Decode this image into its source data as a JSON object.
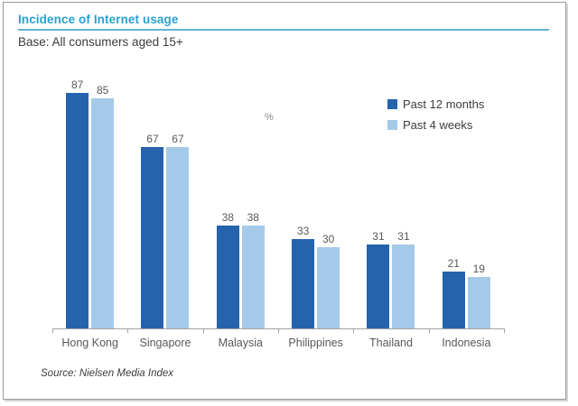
{
  "page": {
    "title": "Incidence of Internet usage",
    "subtitle": "Base: All consumers aged 15+",
    "source": "Source: Nielsen Media Index"
  },
  "chart_data": {
    "type": "bar",
    "title": "Incidence of Internet usage",
    "subtitle": "Base: All consumers aged 15+",
    "unit_label": "%",
    "categories": [
      "Hong Kong",
      "Singapore",
      "Malaysia",
      "Philippines",
      "Thailand",
      "Indonesia"
    ],
    "series": [
      {
        "name": "Past 12 months",
        "color": "#2563ac",
        "values": [
          87,
          67,
          38,
          33,
          31,
          21
        ]
      },
      {
        "name": "Past 4 weeks",
        "color": "#a5c9e8",
        "values": [
          85,
          67,
          38,
          30,
          31,
          19
        ]
      }
    ],
    "ylim": [
      0,
      100
    ],
    "value_labels": true,
    "grid": false,
    "legend_position": "top-right",
    "source": "Source: Nielsen Media Index"
  },
  "style": {
    "title_color": "#2ba0d4",
    "rule_color": "#66b1d1",
    "text_color": "#3c3c3c",
    "label_color": "#595959",
    "axis_color": "#a3a3a3"
  }
}
